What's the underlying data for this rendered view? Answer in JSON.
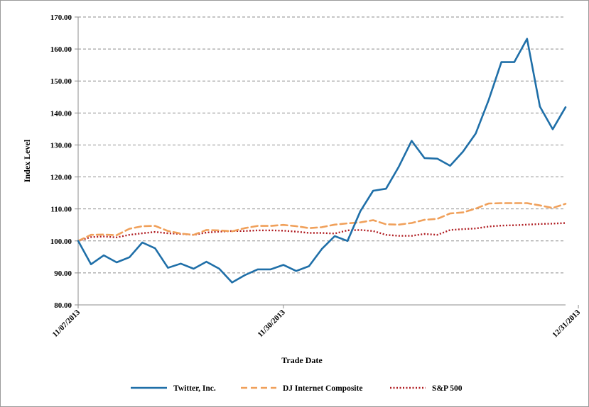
{
  "chart_data": {
    "type": "line",
    "xlabel": "Trade Date",
    "ylabel": "Index Level",
    "ylim": [
      80,
      170
    ],
    "y_ticks": [
      "80.00",
      "90.00",
      "100.00",
      "110.00",
      "120.00",
      "130.00",
      "140.00",
      "150.00",
      "160.00",
      "170.00"
    ],
    "x_tick_labels": [
      {
        "index": 0,
        "label": "11/07/2013"
      },
      {
        "index": 16,
        "label": "11/30/2013"
      },
      {
        "index": 39,
        "label": "12/31/2013"
      }
    ],
    "grid": "horizontal-dashed",
    "legend_position": "bottom",
    "series": [
      {
        "name": "Twitter, Inc.",
        "color": "#1F6FA8",
        "style": "solid",
        "values": [
          100,
          92.7,
          95.5,
          93.3,
          94.9,
          99.5,
          97.7,
          91.6,
          92.9,
          91.3,
          93.5,
          91.3,
          87.0,
          89.3,
          91.1,
          91.1,
          92.5,
          90.6,
          92.1,
          97.5,
          101.5,
          100.0,
          109.3,
          115.7,
          116.3,
          123.2,
          131.3,
          125.9,
          125.7,
          123.5,
          127.9,
          133.6,
          144.0,
          155.9,
          155.9,
          163.2,
          142.0,
          134.9,
          141.8
        ]
      },
      {
        "name": "DJ Internet Composite",
        "color": "#F0A05A",
        "style": "dashed",
        "values": [
          100,
          101.9,
          102.0,
          101.8,
          103.8,
          104.6,
          104.7,
          103.1,
          102.3,
          101.9,
          103.4,
          103.3,
          103.0,
          104.0,
          104.7,
          104.7,
          105.0,
          104.6,
          104.0,
          104.3,
          105.1,
          105.5,
          105.8,
          106.5,
          105.2,
          105.1,
          105.6,
          106.6,
          106.9,
          108.6,
          108.9,
          110.1,
          111.7,
          111.8,
          111.8,
          111.8,
          111.1,
          110.3,
          111.6
        ]
      },
      {
        "name": "S&P 500",
        "color": "#B01E23",
        "style": "dotted",
        "values": [
          100,
          101.2,
          101.4,
          101.1,
          101.9,
          102.4,
          102.8,
          102.4,
          102.2,
          101.9,
          102.6,
          102.9,
          103.1,
          103.1,
          103.3,
          103.3,
          103.2,
          102.9,
          102.5,
          102.5,
          102.3,
          103.3,
          103.4,
          103.1,
          101.9,
          101.6,
          101.6,
          102.2,
          101.9,
          103.4,
          103.7,
          103.9,
          104.5,
          104.8,
          104.9,
          105.1,
          105.3,
          105.4,
          105.6
        ]
      }
    ]
  }
}
